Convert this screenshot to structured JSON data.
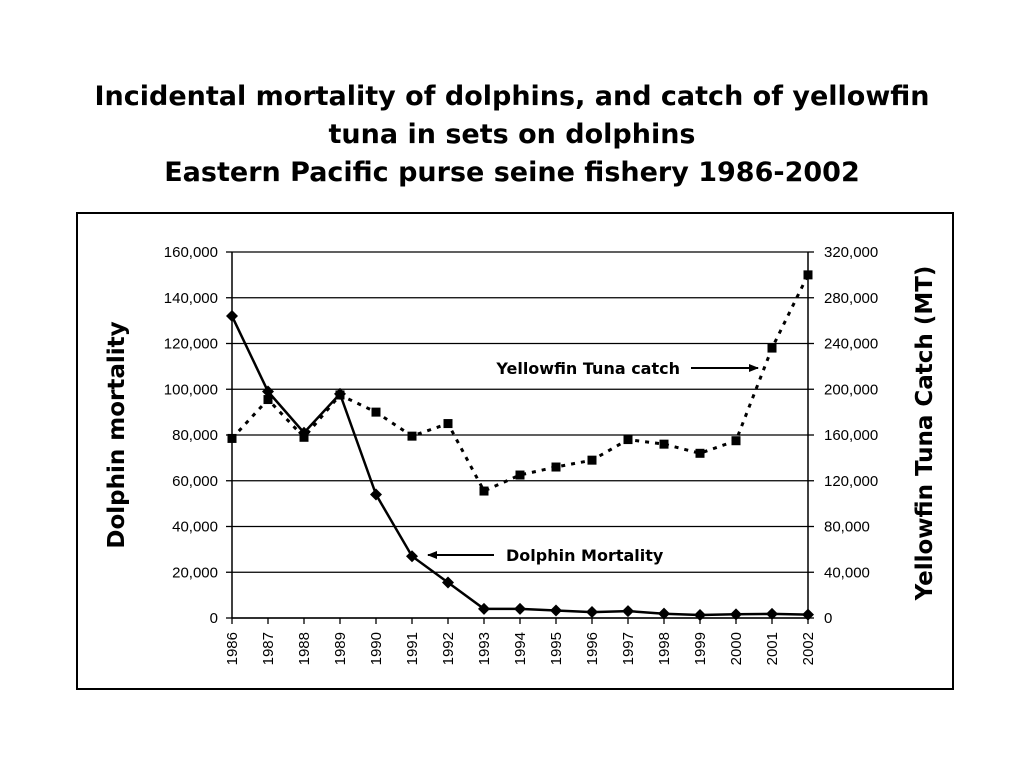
{
  "chart_data": {
    "type": "line",
    "title_lines": [
      "Incidental mortality of dolphins, and catch of yellowfin",
      "tuna in sets on dolphins",
      "Eastern Pacific purse seine fishery 1986-2002"
    ],
    "categories": [
      "1986",
      "1987",
      "1988",
      "1989",
      "1990",
      "1991",
      "1992",
      "1993",
      "1994",
      "1995",
      "1996",
      "1997",
      "1998",
      "1999",
      "2000",
      "2001",
      "2002"
    ],
    "left_axis": {
      "label": "Dolphin mortality",
      "ylim": [
        0,
        160000
      ],
      "ticks": [
        "0",
        "20,000",
        "40,000",
        "60,000",
        "80,000",
        "100,000",
        "120,000",
        "140,000",
        "160,000"
      ]
    },
    "right_axis": {
      "label": "Yellowfin Tuna Catch (MT)",
      "ylim": [
        0,
        320000
      ],
      "ticks": [
        "0",
        "40,000",
        "80,000",
        "120,000",
        "160,000",
        "200,000",
        "240,000",
        "280,000",
        "320,000"
      ]
    },
    "series": [
      {
        "name": "Dolphin Mortality",
        "axis": "left",
        "style": "solid",
        "marker": "diamond",
        "values": [
          132000,
          99000,
          81000,
          98000,
          54000,
          27000,
          15500,
          4000,
          4000,
          3300,
          2600,
          3000,
          1900,
          1300,
          1600,
          1800,
          1500
        ]
      },
      {
        "name": "Yellowfin Tuna catch",
        "axis": "right",
        "style": "dotted",
        "marker": "square",
        "values": [
          157000,
          191000,
          158000,
          195000,
          180000,
          159000,
          170000,
          111000,
          125000,
          132000,
          138000,
          156000,
          152000,
          144000,
          155000,
          236000,
          300000
        ]
      }
    ],
    "annotations": [
      {
        "text": "Yellowfin Tuna catch",
        "series": "Yellowfin Tuna catch"
      },
      {
        "text": "Dolphin Mortality",
        "series": "Dolphin Mortality"
      }
    ],
    "grid": true,
    "colors": {
      "line": "#000000",
      "grid": "#000000"
    }
  }
}
